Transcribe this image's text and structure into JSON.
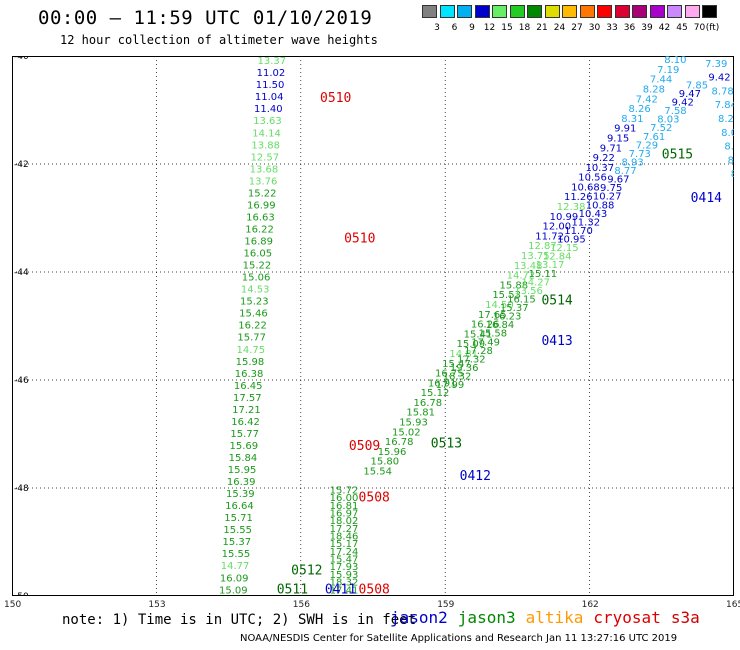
{
  "header": {
    "title": "00:00 – 11:59 UTC 01/10/2019",
    "subtitle": "12 hour collection of altimeter wave heights"
  },
  "legend": {
    "unit": "(ft)",
    "items": [
      {
        "label": "3",
        "color": "#808080"
      },
      {
        "label": "6",
        "color": "#00e5ff"
      },
      {
        "label": "9",
        "color": "#00b0f0"
      },
      {
        "label": "12",
        "color": "#0000cd"
      },
      {
        "label": "15",
        "color": "#66ee66"
      },
      {
        "label": "18",
        "color": "#22cc22"
      },
      {
        "label": "21",
        "color": "#008800"
      },
      {
        "label": "24",
        "color": "#dddd00"
      },
      {
        "label": "27",
        "color": "#ffbb00"
      },
      {
        "label": "30",
        "color": "#ff7700"
      },
      {
        "label": "33",
        "color": "#ff0000"
      },
      {
        "label": "36",
        "color": "#dd0033"
      },
      {
        "label": "39",
        "color": "#aa0077"
      },
      {
        "label": "42",
        "color": "#aa00cc"
      },
      {
        "label": "45",
        "color": "#cc88ff"
      },
      {
        "label": "70",
        "color": "#ffaaee"
      },
      {
        "label": "",
        "color": "#000000"
      }
    ]
  },
  "axes": {
    "y_ticks": [
      "40",
      "42",
      "44",
      "46",
      "48",
      "50"
    ],
    "x_ticks": [
      "150",
      "153",
      "156",
      "159",
      "162",
      "165"
    ]
  },
  "footer": {
    "note": "note: 1) Time is in UTC; 2) SWH is in feet",
    "satellites": [
      {
        "name": "jason2",
        "color": "#0000cc"
      },
      {
        "name": "jason3",
        "color": "#008800"
      },
      {
        "name": "altika",
        "color": "#ff9900"
      },
      {
        "name": "cryosat",
        "color": "#dd0000"
      },
      {
        "name": "s3a",
        "color": "#cc0000"
      }
    ],
    "credit": "NOAA/NESDIS Center for Satellite Applications and Research     Jan 11 13:27:16 UTC 2019"
  },
  "colors": {
    "lightgreen": "#66dd66",
    "green": "#1a9a1a",
    "darkgreen": "#006600",
    "blue": "#0000cc",
    "cyan": "#22aaee",
    "red": "#dd0000"
  },
  "map": {
    "track_left": [
      {
        "v": "13.37",
        "c": "lightgreen"
      },
      {
        "v": "11.02",
        "c": "blue"
      },
      {
        "v": "11.50",
        "c": "blue"
      },
      {
        "v": "11.04",
        "c": "blue"
      },
      {
        "v": "11.40",
        "c": "blue"
      },
      {
        "v": "13.63",
        "c": "lightgreen"
      },
      {
        "v": "14.14",
        "c": "lightgreen"
      },
      {
        "v": "13.88",
        "c": "lightgreen"
      },
      {
        "v": "12.57",
        "c": "lightgreen"
      },
      {
        "v": "13.68",
        "c": "lightgreen"
      },
      {
        "v": "13.76",
        "c": "lightgreen"
      },
      {
        "v": "15.22",
        "c": "green"
      },
      {
        "v": "16.99",
        "c": "green"
      },
      {
        "v": "16.63",
        "c": "green"
      },
      {
        "v": "16.22",
        "c": "green"
      },
      {
        "v": "16.89",
        "c": "green"
      },
      {
        "v": "16.05",
        "c": "green"
      },
      {
        "v": "15.22",
        "c": "green"
      },
      {
        "v": "15.06",
        "c": "green"
      },
      {
        "v": "14.53",
        "c": "lightgreen"
      },
      {
        "v": "15.23",
        "c": "green"
      },
      {
        "v": "15.46",
        "c": "green"
      },
      {
        "v": "16.22",
        "c": "green"
      },
      {
        "v": "15.77",
        "c": "green"
      },
      {
        "v": "14.75",
        "c": "lightgreen"
      },
      {
        "v": "15.98",
        "c": "green"
      },
      {
        "v": "16.38",
        "c": "green"
      },
      {
        "v": "16.45",
        "c": "green"
      },
      {
        "v": "17.57",
        "c": "green"
      },
      {
        "v": "17.21",
        "c": "green"
      },
      {
        "v": "16.42",
        "c": "green"
      },
      {
        "v": "15.77",
        "c": "green"
      },
      {
        "v": "15.69",
        "c": "green"
      },
      {
        "v": "15.84",
        "c": "green"
      },
      {
        "v": "15.95",
        "c": "green"
      },
      {
        "v": "16.39",
        "c": "green"
      },
      {
        "v": "15.39",
        "c": "green"
      },
      {
        "v": "16.64",
        "c": "green"
      },
      {
        "v": "15.71",
        "c": "green"
      },
      {
        "v": "15.55",
        "c": "green"
      },
      {
        "v": "15.37",
        "c": "green"
      },
      {
        "v": "15.55",
        "c": "green"
      },
      {
        "v": "14.77",
        "c": "lightgreen"
      },
      {
        "v": "16.09",
        "c": "green"
      },
      {
        "v": "15.09",
        "c": "green"
      }
    ],
    "track_right": [
      {
        "v": "15.72",
        "c": "green"
      },
      {
        "v": "16.00",
        "c": "green"
      },
      {
        "v": "16.81",
        "c": "green"
      },
      {
        "v": "16.97",
        "c": "green"
      },
      {
        "v": "18.02",
        "c": "green"
      },
      {
        "v": "17.27",
        "c": "green"
      },
      {
        "v": "18.46",
        "c": "green"
      },
      {
        "v": "15.17",
        "c": "green"
      },
      {
        "v": "17.24",
        "c": "green"
      },
      {
        "v": "15.47",
        "c": "green"
      },
      {
        "v": "17.93",
        "c": "green"
      },
      {
        "v": "15.93",
        "c": "green"
      },
      {
        "v": "18.32",
        "c": "green"
      },
      {
        "v": "17.41",
        "c": "green"
      }
    ],
    "track_diag_a": [
      {
        "v": "15.54",
        "c": "green"
      },
      {
        "v": "15.80",
        "c": "green"
      },
      {
        "v": "15.96",
        "c": "green"
      },
      {
        "v": "16.78",
        "c": "green"
      },
      {
        "v": "15.02",
        "c": "green"
      },
      {
        "v": "15.93",
        "c": "green"
      },
      {
        "v": "15.81",
        "c": "green"
      },
      {
        "v": "16.78",
        "c": "green"
      },
      {
        "v": "15.12",
        "c": "green"
      },
      {
        "v": "16.91",
        "c": "green"
      },
      {
        "v": "16.75",
        "c": "green"
      },
      {
        "v": "15.47",
        "c": "green"
      },
      {
        "v": "14.81",
        "c": "lightgreen"
      },
      {
        "v": "15.09",
        "c": "green"
      },
      {
        "v": "15.41",
        "c": "green"
      },
      {
        "v": "16.26",
        "c": "green"
      },
      {
        "v": "17.65",
        "c": "green"
      },
      {
        "v": "14.50",
        "c": "lightgreen"
      },
      {
        "v": "15.53",
        "c": "green"
      },
      {
        "v": "15.88",
        "c": "green"
      },
      {
        "v": "14.72",
        "c": "lightgreen"
      },
      {
        "v": "13.48",
        "c": "lightgreen"
      },
      {
        "v": "13.75",
        "c": "lightgreen"
      },
      {
        "v": "12.87",
        "c": "lightgreen"
      },
      {
        "v": "11.72",
        "c": "blue"
      },
      {
        "v": "12.00",
        "c": "blue"
      },
      {
        "v": "10.99",
        "c": "blue"
      },
      {
        "v": "12.38",
        "c": "lightgreen"
      },
      {
        "v": "11.26",
        "c": "blue"
      },
      {
        "v": "10.68",
        "c": "blue"
      },
      {
        "v": "10.56",
        "c": "blue"
      },
      {
        "v": "10.37",
        "c": "blue"
      },
      {
        "v": "9.22",
        "c": "blue"
      },
      {
        "v": "9.71",
        "c": "blue"
      },
      {
        "v": "9.15",
        "c": "blue"
      },
      {
        "v": "9.91",
        "c": "blue"
      },
      {
        "v": "8.31",
        "c": "cyan"
      },
      {
        "v": "8.26",
        "c": "cyan"
      },
      {
        "v": "7.42",
        "c": "cyan"
      },
      {
        "v": "8.28",
        "c": "cyan"
      },
      {
        "v": "7.44",
        "c": "cyan"
      },
      {
        "v": "7.19",
        "c": "cyan"
      },
      {
        "v": "8.10",
        "c": "cyan"
      },
      {
        "v": "7.18",
        "c": "cyan"
      }
    ],
    "track_diag_b": [
      {
        "v": "17.99",
        "c": "green"
      },
      {
        "v": "18.32",
        "c": "green"
      },
      {
        "v": "19.36",
        "c": "green"
      },
      {
        "v": "17.32",
        "c": "green"
      },
      {
        "v": "17.28",
        "c": "green"
      },
      {
        "v": "17.49",
        "c": "green"
      },
      {
        "v": "15.58",
        "c": "green"
      },
      {
        "v": "16.84",
        "c": "green"
      },
      {
        "v": "16.23",
        "c": "green"
      },
      {
        "v": "15.37",
        "c": "green"
      },
      {
        "v": "16.15",
        "c": "green"
      },
      {
        "v": "13.56",
        "c": "lightgreen"
      },
      {
        "v": "14.27",
        "c": "lightgreen"
      },
      {
        "v": "15.11",
        "c": "green"
      },
      {
        "v": "13.17",
        "c": "lightgreen"
      },
      {
        "v": "12.84",
        "c": "lightgreen"
      },
      {
        "v": "12.15",
        "c": "lightgreen"
      },
      {
        "v": "10.95",
        "c": "blue"
      },
      {
        "v": "11.70",
        "c": "blue"
      },
      {
        "v": "11.32",
        "c": "blue"
      },
      {
        "v": "10.43",
        "c": "blue"
      },
      {
        "v": "10.88",
        "c": "blue"
      },
      {
        "v": "10.27",
        "c": "blue"
      },
      {
        "v": "9.75",
        "c": "blue"
      },
      {
        "v": "9.67",
        "c": "blue"
      },
      {
        "v": "8.77",
        "c": "cyan"
      },
      {
        "v": "8.93",
        "c": "cyan"
      },
      {
        "v": "7.73",
        "c": "cyan"
      },
      {
        "v": "7.29",
        "c": "cyan"
      },
      {
        "v": "7.61",
        "c": "cyan"
      },
      {
        "v": "7.52",
        "c": "cyan"
      },
      {
        "v": "8.03",
        "c": "cyan"
      },
      {
        "v": "7.58",
        "c": "cyan"
      },
      {
        "v": "9.42",
        "c": "blue"
      },
      {
        "v": "9.47",
        "c": "blue"
      },
      {
        "v": "7.85",
        "c": "cyan"
      }
    ],
    "track_far": [
      {
        "v": "7.39",
        "c": "cyan"
      },
      {
        "v": "9.42",
        "c": "blue"
      },
      {
        "v": "8.78",
        "c": "cyan"
      },
      {
        "v": "7.84",
        "c": "cyan"
      },
      {
        "v": "8.25",
        "c": "cyan"
      },
      {
        "v": "8.05",
        "c": "cyan"
      },
      {
        "v": "8.89",
        "c": "cyan"
      },
      {
        "v": "8.2",
        "c": "cyan"
      },
      {
        "v": "8.",
        "c": "cyan"
      },
      {
        "v": "9",
        "c": "blue"
      }
    ],
    "pass_labels": [
      {
        "t": "0510",
        "c": "red"
      },
      {
        "t": "0510",
        "c": "red"
      },
      {
        "t": "0509",
        "c": "red"
      },
      {
        "t": "0508",
        "c": "red"
      },
      {
        "t": "0508",
        "c": "red"
      },
      {
        "t": "0513",
        "c": "darkgreen"
      },
      {
        "t": "0514",
        "c": "darkgreen"
      },
      {
        "t": "0515",
        "c": "darkgreen"
      },
      {
        "t": "0512",
        "c": "darkgreen"
      },
      {
        "t": "0511",
        "c": "darkgreen"
      },
      {
        "t": "0412",
        "c": "blue"
      },
      {
        "t": "0413",
        "c": "blue"
      },
      {
        "t": "0414",
        "c": "blue"
      },
      {
        "t": "0411",
        "c": "blue"
      }
    ]
  }
}
